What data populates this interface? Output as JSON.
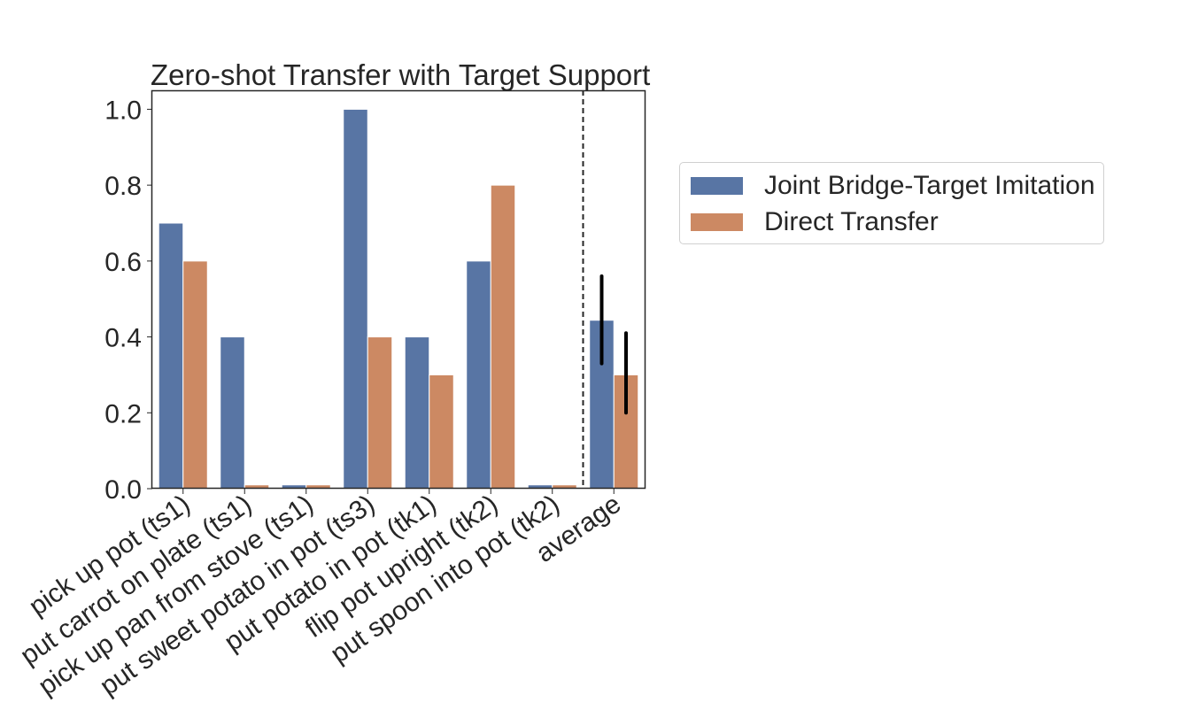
{
  "chart_data": {
    "type": "bar",
    "title": "Zero-shot Transfer with Target Support",
    "xlabel": "",
    "ylabel": "",
    "ylim": [
      0,
      1.05
    ],
    "yticks": [
      "0.0",
      "0.2",
      "0.4",
      "0.6",
      "0.8",
      "1.0"
    ],
    "categories": [
      "pick up pot (ts1)",
      "put carrot on plate (ts1)",
      "pick up pan from stove (ts1)",
      "put sweet potato in pot (ts3)",
      "put potato in pot (tk1)",
      "flip pot upright (tk2)",
      "put spoon into pot (tk2)",
      "average"
    ],
    "series": [
      {
        "name": "Joint Bridge-Target Imitation",
        "color": "#5875a4",
        "values": [
          0.7,
          0.4,
          0.01,
          1.0,
          0.4,
          0.6,
          0.01,
          0.444
        ],
        "error": [
          null,
          null,
          null,
          null,
          null,
          null,
          null,
          [
            0.33,
            0.56
          ]
        ]
      },
      {
        "name": "Direct Transfer",
        "color": "#cc8963",
        "values": [
          0.6,
          0.01,
          0.01,
          0.4,
          0.3,
          0.8,
          0.01,
          0.3
        ],
        "error": [
          null,
          null,
          null,
          null,
          null,
          null,
          null,
          [
            0.2,
            0.41
          ]
        ]
      }
    ],
    "separator_after_index": 6,
    "grid": false,
    "legend_position": "outside-right"
  }
}
